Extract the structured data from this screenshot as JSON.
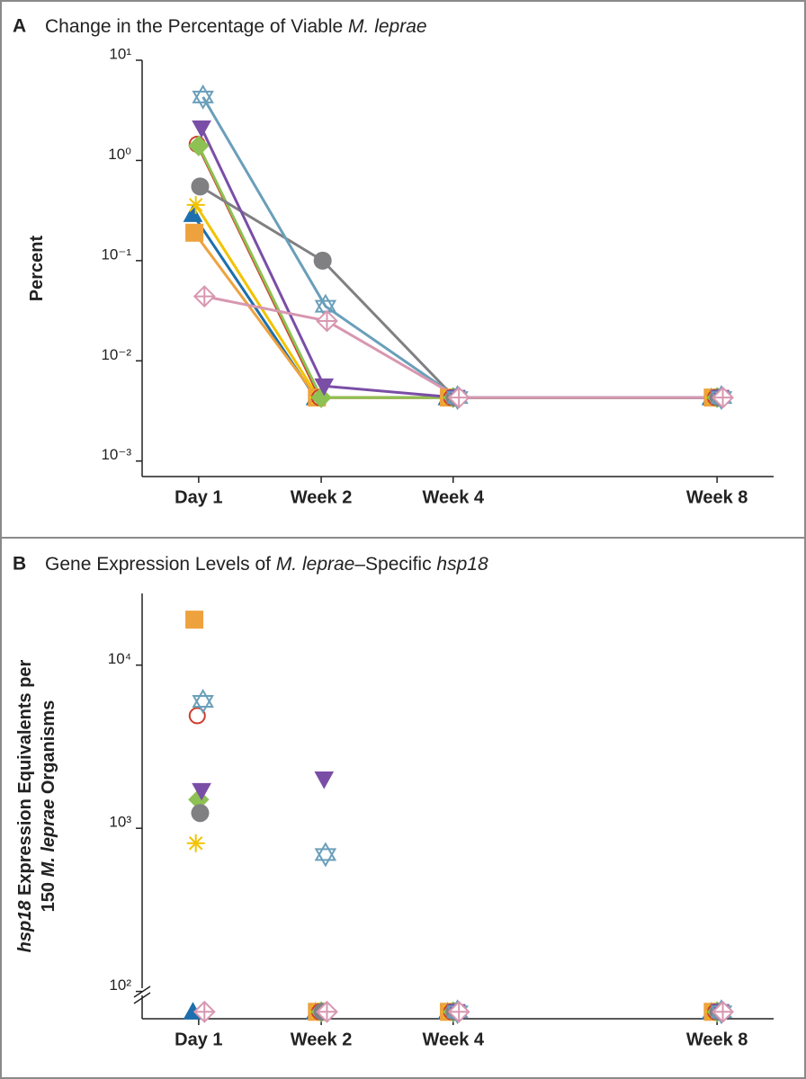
{
  "chart_data": [
    {
      "type": "line",
      "panel_label": "A",
      "title_segments": [
        {
          "text": "Change in the Percentage of Viable ",
          "italic": false
        },
        {
          "text": "M. leprae",
          "italic": true
        }
      ],
      "ylabel_segments": [
        [
          {
            "text": "Percent",
            "italic": false
          }
        ]
      ],
      "log_y": true,
      "lines": true,
      "x": [
        1,
        14,
        28,
        56
      ],
      "xlim": [
        -5,
        62
      ],
      "xticks": [
        {
          "value": 1,
          "label": "Day 1"
        },
        {
          "value": 14,
          "label": "Week 2"
        },
        {
          "value": 28,
          "label": "Week 4"
        },
        {
          "value": 56,
          "label": "Week 8"
        }
      ],
      "ylim": [
        0.0007,
        10
      ],
      "yticks": [
        {
          "value": 0.001,
          "label": "10⁻³"
        },
        {
          "value": 0.01,
          "label": "10⁻²"
        },
        {
          "value": 0.1,
          "label": "10⁻¹"
        },
        {
          "value": 1,
          "label": "10⁰"
        },
        {
          "value": 10,
          "label": "10¹"
        }
      ],
      "series": [
        {
          "color": "#1d6fae",
          "marker": "triangle",
          "values": [
            0.29,
            0.0043,
            0.0043,
            0.0043
          ]
        },
        {
          "color": "#eea23e",
          "marker": "square",
          "values": [
            0.19,
            0.0043,
            0.0043,
            0.0043
          ]
        },
        {
          "color": "#f2c300",
          "marker": "asterisk",
          "values": [
            0.36,
            0.0043,
            0.0043,
            0.0043
          ]
        },
        {
          "color": "#cf3b2b",
          "marker": "open-circle",
          "values": [
            1.45,
            0.0043,
            0.0043,
            0.0043
          ]
        },
        {
          "color": "#8dc153",
          "marker": "diamond",
          "values": [
            1.4,
            0.0043,
            0.0043,
            0.0043
          ]
        },
        {
          "color": "#808083",
          "marker": "circle",
          "values": [
            0.55,
            0.1,
            0.0043,
            0.0043
          ]
        },
        {
          "color": "#7a4ea6",
          "marker": "triangle-down",
          "values": [
            2.1,
            0.0056,
            0.0043,
            0.0043
          ]
        },
        {
          "color": "#6a9fba",
          "marker": "hexagram",
          "values": [
            4.3,
            0.035,
            0.0043,
            0.0043
          ]
        },
        {
          "color": "#d897b0",
          "marker": "open-diamond-cross",
          "values": [
            0.044,
            0.025,
            0.0043,
            0.0043
          ]
        }
      ]
    },
    {
      "type": "scatter",
      "panel_label": "B",
      "title_segments": [
        {
          "text": "Gene Expression Levels of ",
          "italic": false
        },
        {
          "text": "M. leprae",
          "italic": true
        },
        {
          "text": "–Specific ",
          "italic": false
        },
        {
          "text": "hsp18",
          "italic": true
        }
      ],
      "ylabel_segments": [
        [
          {
            "text": "hsp18",
            "italic": true
          },
          {
            "text": " Expression Equivalents per",
            "italic": false
          }
        ],
        [
          {
            "text": "150 ",
            "italic": false
          },
          {
            "text": "M. leprae",
            "italic": true
          },
          {
            "text": " Organisms",
            "italic": false
          }
        ]
      ],
      "log_y": true,
      "lines": false,
      "axis_break": true,
      "x": [
        1,
        14,
        28,
        56
      ],
      "xlim": [
        -5,
        62
      ],
      "xticks": [
        {
          "value": 1,
          "label": "Day 1"
        },
        {
          "value": 14,
          "label": "Week 2"
        },
        {
          "value": 28,
          "label": "Week 4"
        },
        {
          "value": 56,
          "label": "Week 8"
        }
      ],
      "ylim": [
        68,
        27500
      ],
      "yticks": [
        {
          "value": 100,
          "label": "10²"
        },
        {
          "value": 1000,
          "label": "10³"
        },
        {
          "value": 10000,
          "label": "10⁴"
        }
      ],
      "series": [
        {
          "color": "#1d6fae",
          "marker": "triangle",
          "values": [
            75,
            75,
            75,
            75
          ]
        },
        {
          "color": "#eea23e",
          "marker": "square",
          "values": [
            19000,
            75,
            75,
            75
          ]
        },
        {
          "color": "#f2c300",
          "marker": "asterisk",
          "values": [
            810,
            75,
            75,
            75
          ]
        },
        {
          "color": "#cf3b2b",
          "marker": "open-circle",
          "values": [
            4900,
            75,
            75,
            75
          ]
        },
        {
          "color": "#8dc153",
          "marker": "diamond",
          "values": [
            1500,
            75,
            75,
            75
          ]
        },
        {
          "color": "#808083",
          "marker": "circle",
          "values": [
            1240,
            75,
            75,
            75
          ]
        },
        {
          "color": "#7a4ea6",
          "marker": "triangle-down",
          "values": [
            1700,
            2000,
            75,
            75
          ]
        },
        {
          "color": "#6a9fba",
          "marker": "hexagram",
          "values": [
            6000,
            690,
            75,
            75
          ]
        },
        {
          "color": "#d897b0",
          "marker": "open-diamond-cross",
          "values": [
            75,
            75,
            75,
            75
          ]
        }
      ]
    }
  ]
}
